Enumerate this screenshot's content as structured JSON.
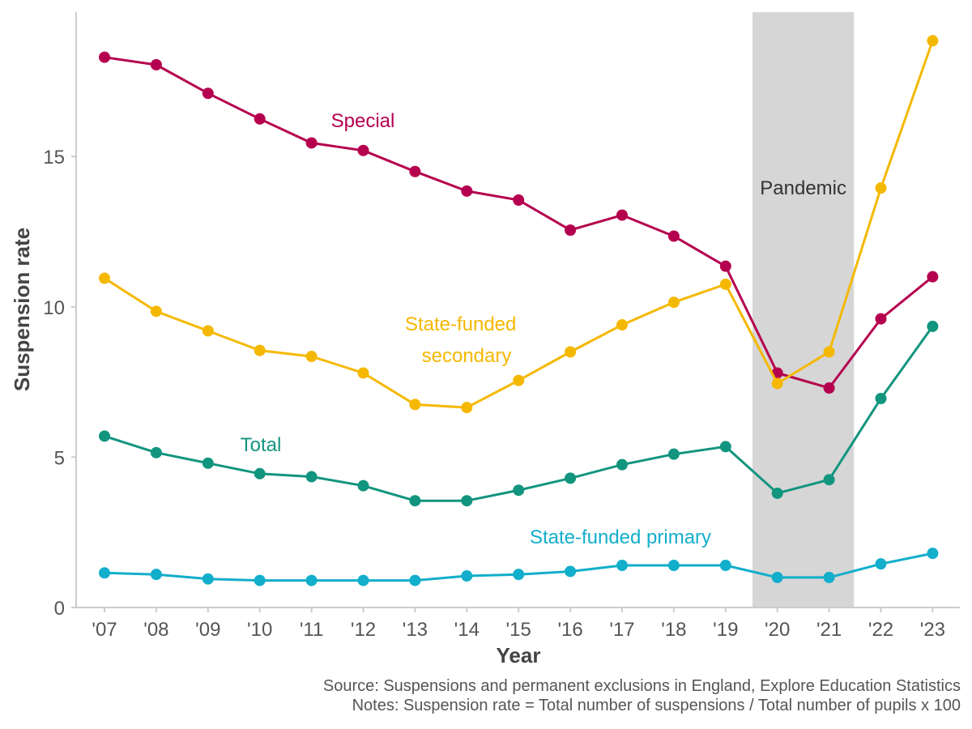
{
  "chart_data": {
    "type": "line",
    "xlabel": "Year",
    "ylabel": "Suspension rate",
    "categories": [
      "'07",
      "'08",
      "'09",
      "'10",
      "'11",
      "'12",
      "'13",
      "'14",
      "'15",
      "'16",
      "'17",
      "'18",
      "'19",
      "'20",
      "'21",
      "'22",
      "'23"
    ],
    "ylim": [
      0,
      19.8
    ],
    "yticks": [
      0,
      5,
      10,
      15
    ],
    "series": [
      {
        "name": "Special",
        "color": "#B5004F",
        "values": [
          18.3,
          18.05,
          17.1,
          16.25,
          15.45,
          15.2,
          14.5,
          13.85,
          13.55,
          12.55,
          13.05,
          12.35,
          11.35,
          7.8,
          7.3,
          9.6,
          11.0
        ]
      },
      {
        "name": "State-funded secondary",
        "label_lines": [
          "State-funded",
          "secondary"
        ],
        "color": "#F5B800",
        "values": [
          10.95,
          9.85,
          9.2,
          8.55,
          8.35,
          7.8,
          6.75,
          6.65,
          7.55,
          8.5,
          9.4,
          10.15,
          10.75,
          7.45,
          8.5,
          13.95,
          18.85
        ]
      },
      {
        "name": "Total",
        "color": "#12957F",
        "values": [
          5.7,
          5.15,
          4.8,
          4.45,
          4.35,
          4.05,
          3.55,
          3.55,
          3.9,
          4.3,
          4.75,
          5.1,
          5.35,
          3.8,
          4.25,
          6.95,
          9.35
        ]
      },
      {
        "name": "State-funded primary",
        "color": "#12AECB",
        "values": [
          1.15,
          1.1,
          0.95,
          0.9,
          0.9,
          0.9,
          0.9,
          1.05,
          1.1,
          1.2,
          1.4,
          1.4,
          1.4,
          1.0,
          1.0,
          1.45,
          1.8
        ]
      }
    ],
    "shaded_region": {
      "label": "Pandemic",
      "from": "'20",
      "to": "'21",
      "color": "#D6D6D6"
    }
  },
  "source": "Source: Suspensions and permanent exclusions in England, Explore Education Statistics",
  "notes": "Notes: Suspension rate = Total number of suspensions / Total number of pupils x 100"
}
